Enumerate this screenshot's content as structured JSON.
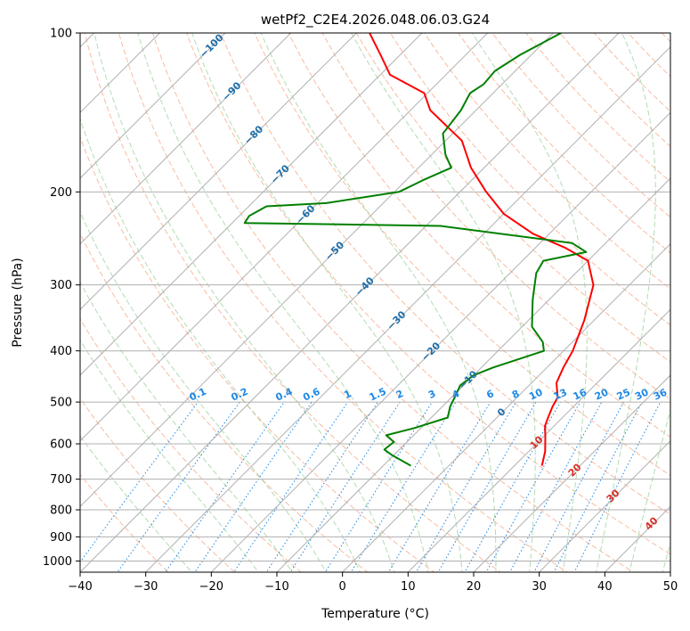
{
  "chart_data": {
    "type": "line",
    "subtype": "skew-T log-P",
    "title": "wetPf2_C2E4.2026.048.06.03.G24",
    "xlabel": "Temperature (°C)",
    "ylabel": "Pressure (hPa)",
    "xlim": [
      -40,
      50
    ],
    "ylim": [
      1050,
      100
    ],
    "x_ticks": [
      -40,
      -30,
      -20,
      -10,
      0,
      10,
      20,
      30,
      40,
      50
    ],
    "x_tick_labels": [
      "−40",
      "−30",
      "−20",
      "−10",
      "0",
      "10",
      "20",
      "30",
      "40",
      "50"
    ],
    "y_ticks": [
      100,
      200,
      300,
      400,
      500,
      600,
      700,
      800,
      900,
      1000
    ],
    "y_tick_labels": [
      "100",
      "200",
      "300",
      "400",
      "500",
      "600",
      "700",
      "800",
      "900",
      "1000"
    ],
    "colors": {
      "temperature": "#ff0000",
      "dewpoint": "#008000",
      "grid": "#b0b0b0",
      "dry_adiabat": "#f4a582",
      "moist_adiabat": "#98d098",
      "mixing_ratio": "#1e88e5",
      "isotherm_label": "#1f6ea8",
      "moist_label": "#d73027"
    },
    "series": [
      {
        "name": "Temperature",
        "color": "#ff0000",
        "points": [
          [
            14.2,
            660
          ],
          [
            12.5,
            620
          ],
          [
            10.2,
            580
          ],
          [
            8.6,
            555
          ],
          [
            7.8,
            535
          ],
          [
            6.8,
            510
          ],
          [
            6.2,
            490
          ],
          [
            3.8,
            460
          ],
          [
            2.5,
            430
          ],
          [
            1.4,
            400
          ],
          [
            -1.5,
            350
          ],
          [
            -5.5,
            300
          ],
          [
            -10.0,
            270
          ],
          [
            -15.5,
            255
          ],
          [
            -22.5,
            240
          ],
          [
            -30.0,
            220
          ],
          [
            -36.0,
            200
          ],
          [
            -42.0,
            180
          ],
          [
            -47.5,
            160
          ],
          [
            -57.0,
            140
          ],
          [
            -60.5,
            130
          ],
          [
            -68.5,
            120
          ],
          [
            -73.0,
            110
          ],
          [
            -78.0,
            100
          ]
        ]
      },
      {
        "name": "Dewpoint",
        "color": "#008000",
        "points": [
          [
            -5.8,
            660
          ],
          [
            -10.3,
            630
          ],
          [
            -12.3,
            615
          ],
          [
            -12.0,
            595
          ],
          [
            -14.2,
            578
          ],
          [
            -11.0,
            560
          ],
          [
            -7.5,
            535
          ],
          [
            -8.8,
            510
          ],
          [
            -9.7,
            485
          ],
          [
            -10.5,
            465
          ],
          [
            -10.0,
            445
          ],
          [
            -8.2,
            430
          ],
          [
            -3.0,
            400
          ],
          [
            -4.5,
            385
          ],
          [
            -8.5,
            360
          ],
          [
            -12.5,
            320
          ],
          [
            -16.0,
            285
          ],
          [
            -16.8,
            270
          ],
          [
            -11.6,
            260
          ],
          [
            -15.1,
            250
          ],
          [
            -37.8,
            232
          ],
          [
            -68.1,
            229
          ],
          [
            -68.5,
            222
          ],
          [
            -67.3,
            213
          ],
          [
            -58.7,
            210
          ],
          [
            -49.3,
            200
          ],
          [
            -47.4,
            190
          ],
          [
            -45.0,
            180
          ],
          [
            -47.9,
            170
          ],
          [
            -51.5,
            155
          ],
          [
            -52.3,
            140
          ],
          [
            -53.5,
            130
          ],
          [
            -52.8,
            125
          ],
          [
            -53.1,
            118
          ],
          [
            -51.7,
            110
          ],
          [
            -48.8,
            100
          ]
        ]
      }
    ],
    "isotherm_labels": [
      "−100",
      "−90",
      "−80",
      "−70",
      "−60",
      "−50",
      "−40",
      "−30",
      "−20",
      "−10",
      "0"
    ],
    "isotherm_label_values": [
      -100,
      -90,
      -80,
      -70,
      -60,
      -50,
      -40,
      -30,
      -20,
      -10,
      0
    ],
    "mixing_ratio_labels": [
      "0.1",
      "0.2",
      "0.4",
      "0.6",
      "1",
      "1.5",
      "2",
      "3",
      "4",
      "6",
      "8",
      "10",
      "13",
      "16",
      "20",
      "25",
      "30",
      "36"
    ],
    "mixing_ratio_values": [
      0.1,
      0.2,
      0.4,
      0.6,
      1,
      1.5,
      2,
      3,
      4,
      6,
      8,
      10,
      13,
      16,
      20,
      25,
      30,
      36
    ],
    "moist_adiabat_labels": [
      "10",
      "20",
      "30",
      "40"
    ],
    "moist_adiabat_values": [
      10,
      20,
      30,
      40
    ]
  }
}
